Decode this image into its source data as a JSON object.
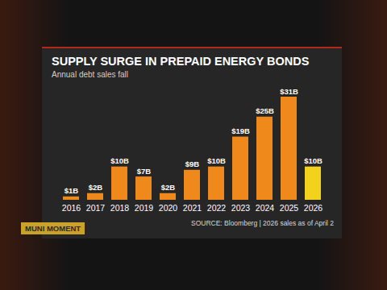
{
  "chart_data": {
    "type": "bar",
    "title": "SUPPLY SURGE IN PREPAID ENERGY BONDS",
    "subtitle": "Annual debt sales fall",
    "caption": "SOURCE: Bloomberg | 2026 sales as of April 2",
    "annotations": [
      "MUNI MOMENT"
    ],
    "categories": [
      "2016",
      "2017",
      "2018",
      "2019",
      "2020",
      "2021",
      "2022",
      "2023",
      "2024",
      "2025",
      "2026"
    ],
    "values": [
      1,
      2,
      10,
      7,
      2,
      9,
      10,
      19,
      25,
      31,
      10
    ],
    "value_labels": [
      "$1B",
      "$2B",
      "$10B",
      "$7B",
      "$2B",
      "$9B",
      "$10B",
      "$19B",
      "$25B",
      "$31B",
      "$10B"
    ],
    "colors": [
      "#f0891c",
      "#f0891c",
      "#f0891c",
      "#f0891c",
      "#f0891c",
      "#f0891c",
      "#f0891c",
      "#f0891c",
      "#f0891c",
      "#f0891c",
      "#f2d21b"
    ],
    "data_labels": true,
    "tick_labels": "x",
    "grid": false
  }
}
